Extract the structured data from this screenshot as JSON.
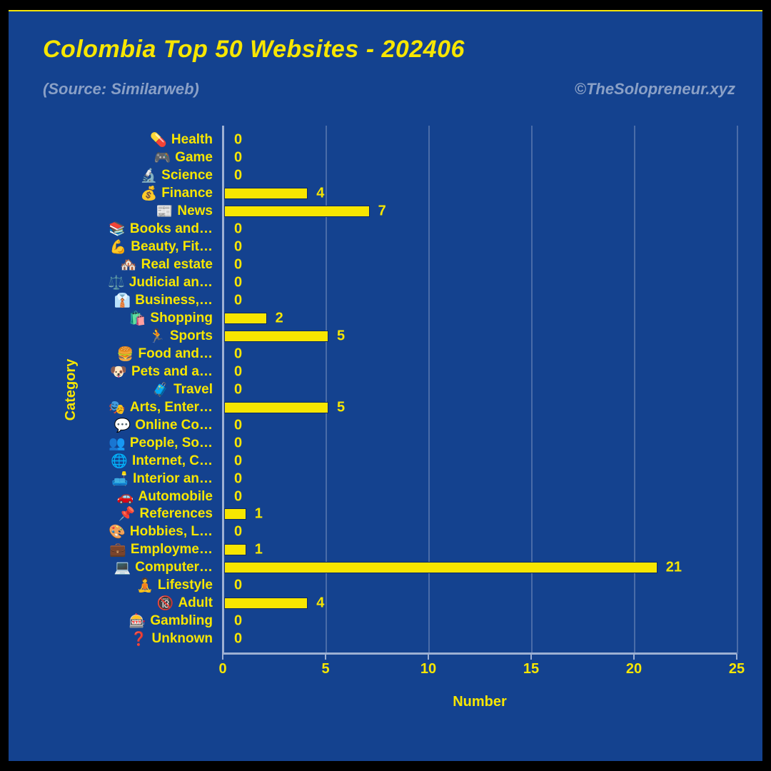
{
  "chart": {
    "type": "bar-horizontal",
    "title": "Colombia Top 50 Websites - 202406",
    "title_fontsize": 34,
    "subtitle": "(Source: Similarweb)",
    "subtitle_fontsize": 22,
    "credit": "©TheSolopreneur.xyz",
    "credit_fontsize": 22,
    "background_color": "#14428f",
    "page_background": "#000000",
    "accent_color": "#f7e600",
    "muted_text_color": "#8aa0c6",
    "grid_color": "#4a6ca8",
    "axis_color": "#9db0d2",
    "bar_color": "#f7e600",
    "bar_border_color": "#0b2a63",
    "x_label": "Number",
    "y_label": "Category",
    "axis_label_fontsize": 20,
    "tick_fontsize": 20,
    "cat_label_fontsize": 19,
    "value_fontsize": 20,
    "xlim": [
      0,
      25
    ],
    "xtick_step": 5,
    "xticks": [
      0,
      5,
      10,
      15,
      20,
      25
    ],
    "categories": [
      {
        "icon": "💊",
        "label": "Health",
        "value": 0
      },
      {
        "icon": "🎮",
        "label": "Game",
        "value": 0
      },
      {
        "icon": "🔬",
        "label": "Science",
        "value": 0
      },
      {
        "icon": "💰",
        "label": "Finance",
        "value": 4
      },
      {
        "icon": "📰",
        "label": "News",
        "value": 7
      },
      {
        "icon": "📚",
        "label": "Books and…",
        "value": 0
      },
      {
        "icon": "💪",
        "label": "Beauty, Fit…",
        "value": 0
      },
      {
        "icon": "🏘️",
        "label": "Real estate",
        "value": 0
      },
      {
        "icon": "⚖️",
        "label": "Judicial an…",
        "value": 0
      },
      {
        "icon": "👔",
        "label": "Business,…",
        "value": 0
      },
      {
        "icon": "🛍️",
        "label": "Shopping",
        "value": 2
      },
      {
        "icon": "🏃",
        "label": "Sports",
        "value": 5
      },
      {
        "icon": "🍔",
        "label": "Food and…",
        "value": 0
      },
      {
        "icon": "🐶",
        "label": "Pets and a…",
        "value": 0
      },
      {
        "icon": "🧳",
        "label": "Travel",
        "value": 0
      },
      {
        "icon": "🎭",
        "label": "Arts, Enter…",
        "value": 5
      },
      {
        "icon": "💬",
        "label": "Online Co…",
        "value": 0
      },
      {
        "icon": "👥",
        "label": "People, So…",
        "value": 0
      },
      {
        "icon": "🌐",
        "label": "Internet, C…",
        "value": 0
      },
      {
        "icon": "🛋️",
        "label": "Interior an…",
        "value": 0
      },
      {
        "icon": "🚗",
        "label": "Automobile",
        "value": 0
      },
      {
        "icon": "📌",
        "label": "References",
        "value": 1
      },
      {
        "icon": "🎨",
        "label": "Hobbies, L…",
        "value": 0
      },
      {
        "icon": "💼",
        "label": "Employme…",
        "value": 1
      },
      {
        "icon": "💻",
        "label": "Computer…",
        "value": 21
      },
      {
        "icon": "🧘",
        "label": "Lifestyle",
        "value": 0
      },
      {
        "icon": "🔞",
        "label": "Adult",
        "value": 4
      },
      {
        "icon": "🎰",
        "label": "Gambling",
        "value": 0
      },
      {
        "icon": "❓",
        "label": "Unknown",
        "value": 0
      }
    ]
  }
}
